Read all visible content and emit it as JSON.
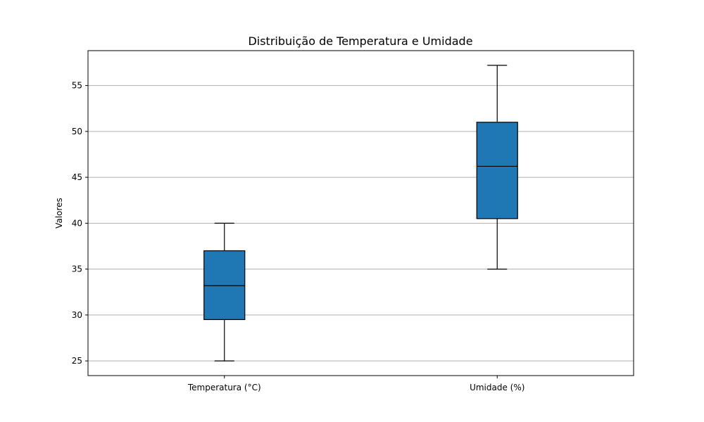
{
  "chart_data": {
    "type": "box",
    "title": "Distribuição de Temperatura e Umidade",
    "xlabel": "",
    "ylabel": "Valores",
    "categories": [
      "Temperatura (°C)",
      "Umidade (%)"
    ],
    "boxes": [
      {
        "label": "Temperatura (°C)",
        "whisker_low": 25.0,
        "q1": 29.5,
        "median": 33.2,
        "q3": 37.0,
        "whisker_high": 40.0
      },
      {
        "label": "Umidade (%)",
        "whisker_low": 35.0,
        "q1": 40.5,
        "median": 46.2,
        "q3": 51.0,
        "whisker_high": 57.2
      }
    ],
    "ylim": [
      23.4,
      58.8
    ],
    "yticks": [
      25,
      30,
      35,
      40,
      45,
      50,
      55
    ],
    "grid": "horizontal",
    "box_color": "#1f77b4",
    "line_color": "#000000",
    "grid_color": "#b0b0b0"
  }
}
